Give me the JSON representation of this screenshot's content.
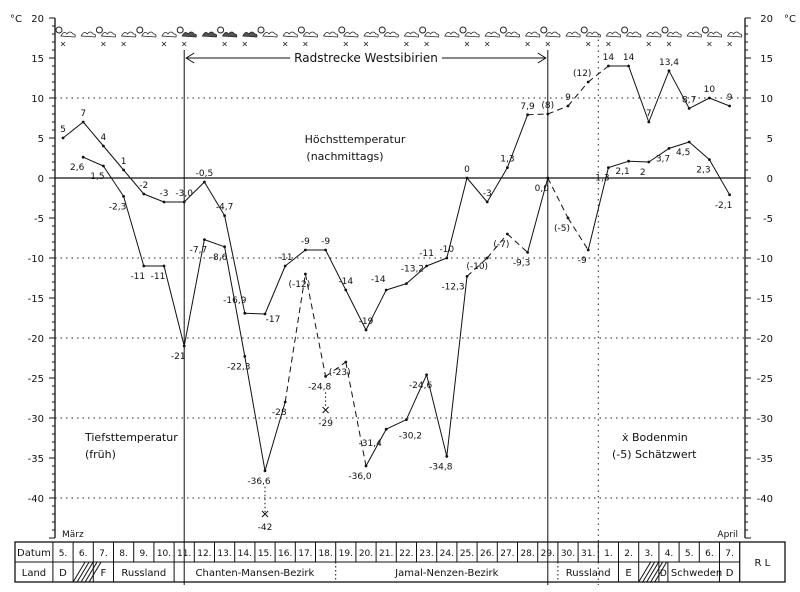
{
  "chart_data": {
    "type": "line",
    "unit_left": "°C",
    "unit_right": "°C",
    "ylim": [
      -45,
      20
    ],
    "yticks": [
      20,
      15,
      10,
      5,
      0,
      -5,
      -10,
      -15,
      -20,
      -25,
      -30,
      -35,
      -40
    ],
    "month_start": "März",
    "month_end": "April",
    "dates": [
      "5.",
      "6.",
      "7.",
      "8.",
      "9.",
      "10.",
      "11.",
      "12.",
      "13.",
      "14.",
      "15.",
      "16.",
      "17.",
      "18.",
      "19.",
      "20.",
      "21.",
      "22.",
      "23.",
      "24.",
      "25.",
      "26.",
      "27.",
      "28.",
      "29.",
      "30.",
      "31.",
      "1.",
      "2.",
      "3.",
      "4.",
      "5.",
      "6.",
      "7."
    ],
    "series": [
      {
        "name": "Höchsttemperatur (nachmittags)",
        "values": [
          5,
          7,
          4,
          1,
          -2,
          -3,
          -3.0,
          -0.5,
          -4.7,
          -16.9,
          -17,
          -11,
          -9,
          -9,
          -14,
          -19,
          -14,
          -13.2,
          -11,
          -10,
          0,
          -3,
          1.3,
          7.9,
          8,
          9,
          12,
          14,
          14,
          7,
          13.4,
          8.7,
          10,
          9
        ],
        "labels": [
          "5",
          "7",
          "4",
          "1",
          "-2",
          "-3",
          "-3,0",
          "-0,5",
          "-4,7",
          "-16,9",
          "-17",
          "-11",
          "-9",
          "-9",
          "-14",
          "-19",
          "-14",
          "-13,2",
          "-11",
          "-10",
          "0",
          "-3",
          "1,3",
          "7,9",
          "(8)",
          "9",
          "(12)",
          "14",
          "14",
          "7",
          "13,4",
          "8,7",
          "10",
          "9"
        ],
        "estimated": [
          24,
          26
        ]
      },
      {
        "name": "Tiefsttemperatur (früh)",
        "values": [
          null,
          2.6,
          1.5,
          -2.3,
          -11,
          -11,
          -21,
          -7.7,
          -8.6,
          -22.3,
          -36.6,
          -28,
          -12,
          -24.8,
          -23,
          -36.0,
          -31.4,
          -30.2,
          -24.6,
          -34.8,
          -12.3,
          -10,
          -7,
          -9.3,
          0.0,
          -5,
          -9,
          1.3,
          2.1,
          2,
          3.7,
          4.5,
          2.3,
          -2.1
        ],
        "labels": [
          "",
          "2,6",
          "1,5",
          "-2,3",
          "-11",
          "-11",
          "-21",
          "-7,7",
          "-8,6",
          "-22,3",
          "-36,6",
          "-28",
          "(-12)",
          "-24,8",
          "(-23)",
          "-36,0",
          "-31,4",
          "-30,2",
          "-24,6",
          "-34,8",
          "-12,3",
          "(-10)",
          "(-7)",
          "-9,3",
          "0,0",
          "(-5)",
          "-9",
          "1,3",
          "2,1",
          "2",
          "3,7",
          "4,5",
          "2,3",
          "-2,1"
        ],
        "estimated": [
          12,
          14,
          21,
          22,
          25
        ]
      }
    ],
    "ground_min": [
      {
        "date_index": 10,
        "value": -42,
        "label": "-42"
      },
      {
        "date_index": 13,
        "value": -29,
        "label": "-29"
      }
    ],
    "annotations": {
      "route": "Radstrecke Westsibirien",
      "high_title_1": "Höchsttemperatur",
      "high_title_2": "(nachmittags)",
      "low_title_1": "Tiefsttemperatur",
      "low_title_2": "(früh)",
      "legend_ground": "ẋ Bodenmin",
      "legend_estimate": "(-5) Schätzwert"
    }
  },
  "table": {
    "date_header": "Datum",
    "land_header": "Land",
    "countries": [
      {
        "label": "D",
        "from": 0,
        "to": 0
      },
      {
        "label": "",
        "from": 1,
        "to": 1,
        "hatched": true
      },
      {
        "label": "F",
        "from": 2,
        "to": 2
      },
      {
        "label": "Russland",
        "from": 3,
        "to": 5
      },
      {
        "label": "Chanten-Mansen-Bezirk",
        "from": 6,
        "to": 13,
        "dotted_end": true
      },
      {
        "label": "Jamal-Nenzen-Bezirk",
        "from": 14,
        "to": 24,
        "dotted_end": true
      },
      {
        "label": "Russland",
        "from": 25,
        "to": 27
      },
      {
        "label": "E",
        "from": 28,
        "to": 28
      },
      {
        "label": "",
        "from": 29,
        "to": 29,
        "hatched": true
      },
      {
        "label": "D",
        "from": 30,
        "to": 30
      },
      {
        "label": "Schweden",
        "from": 30,
        "to": 32
      },
      {
        "label": "D",
        "from": 33,
        "to": 33
      }
    ],
    "signature": "R L"
  }
}
